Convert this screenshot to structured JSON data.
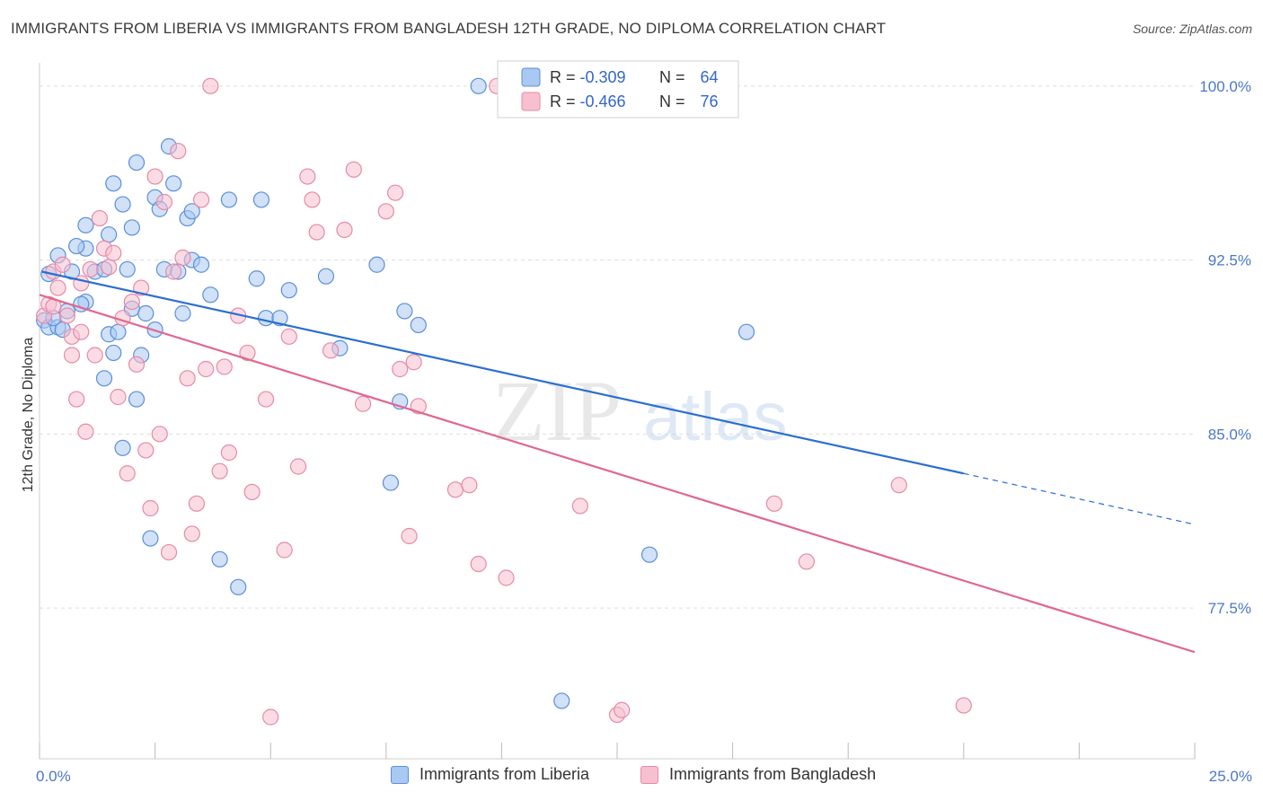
{
  "title": "IMMIGRANTS FROM LIBERIA VS IMMIGRANTS FROM BANGLADESH 12TH GRADE, NO DIPLOMA CORRELATION CHART",
  "source": "Source: ZipAtlas.com",
  "watermark": {
    "zip": "ZIP",
    "atlas": "atlas"
  },
  "colors": {
    "liberia_fill": "#a9c8f2",
    "liberia_stroke": "#5b8fd9",
    "liberia_line": "#2b6fd0",
    "bangladesh_fill": "#f7c0d0",
    "bangladesh_stroke": "#e58aa6",
    "bangladesh_line": "#e06890",
    "tick_text": "#4a78c8",
    "grid": "#dddddd"
  },
  "legend": {
    "rows": [
      {
        "r_label": "R = ",
        "r_value": "-0.309",
        "n_label": "N = ",
        "n_value": "64"
      },
      {
        "r_label": "R = ",
        "r_value": "-0.466",
        "n_label": "N = ",
        "n_value": "76"
      }
    ]
  },
  "bottom_legend": [
    "Immigrants from Liberia",
    "Immigrants from Bangladesh"
  ],
  "chart_data": {
    "type": "scatter",
    "title": "IMMIGRANTS FROM LIBERIA VS IMMIGRANTS FROM BANGLADESH 12TH GRADE, NO DIPLOMA CORRELATION CHART",
    "xlabel": "",
    "ylabel": "12th Grade, No Diploma",
    "xlim": [
      0,
      25
    ],
    "ylim": [
      71.0,
      101.0
    ],
    "x_tick_labels": [
      {
        "value": 0,
        "label": "0.0%"
      },
      {
        "value": 25,
        "label": "25.0%"
      }
    ],
    "y_ticks": [
      {
        "value": 100.0,
        "label": "100.0%"
      },
      {
        "value": 92.5,
        "label": "92.5%"
      },
      {
        "value": 85.0,
        "label": "85.0%"
      },
      {
        "value": 77.5,
        "label": "77.5%"
      }
    ],
    "grid": "horizontal dashed",
    "legend_position": "top-center",
    "series": [
      {
        "name": "Immigrants from Liberia",
        "r": -0.309,
        "n": 64,
        "trend": {
          "x0": 0.05,
          "y0": 92.0,
          "x1": 20.0,
          "y1": 83.3,
          "dash_to_x": 25.0,
          "dash_to_y": 81.1
        },
        "points": [
          [
            0.1,
            89.9
          ],
          [
            0.2,
            89.6
          ],
          [
            0.2,
            91.9
          ],
          [
            0.4,
            89.6
          ],
          [
            0.4,
            92.7
          ],
          [
            0.5,
            89.5
          ],
          [
            0.6,
            90.3
          ],
          [
            0.7,
            92.0
          ],
          [
            1.0,
            90.7
          ],
          [
            1.0,
            93.0
          ],
          [
            1.0,
            94.0
          ],
          [
            0.8,
            93.1
          ],
          [
            1.2,
            92.0
          ],
          [
            0.9,
            90.6
          ],
          [
            1.4,
            87.4
          ],
          [
            1.4,
            92.1
          ],
          [
            1.5,
            93.6
          ],
          [
            1.5,
            89.3
          ],
          [
            1.6,
            95.8
          ],
          [
            1.6,
            88.5
          ],
          [
            1.7,
            89.4
          ],
          [
            1.8,
            94.9
          ],
          [
            1.8,
            84.4
          ],
          [
            1.9,
            92.1
          ],
          [
            2.0,
            93.9
          ],
          [
            2.0,
            90.4
          ],
          [
            2.1,
            96.7
          ],
          [
            2.1,
            86.5
          ],
          [
            2.2,
            88.4
          ],
          [
            2.3,
            90.2
          ],
          [
            2.4,
            80.5
          ],
          [
            2.5,
            95.2
          ],
          [
            2.5,
            89.5
          ],
          [
            2.6,
            94.7
          ],
          [
            2.7,
            92.1
          ],
          [
            2.8,
            97.4
          ],
          [
            2.9,
            95.8
          ],
          [
            3.0,
            92.0
          ],
          [
            3.1,
            90.2
          ],
          [
            3.2,
            94.3
          ],
          [
            3.3,
            92.5
          ],
          [
            3.3,
            94.6
          ],
          [
            3.5,
            92.3
          ],
          [
            3.7,
            91.0
          ],
          [
            3.9,
            79.6
          ],
          [
            4.1,
            95.1
          ],
          [
            4.3,
            78.4
          ],
          [
            4.7,
            91.7
          ],
          [
            4.8,
            95.1
          ],
          [
            4.9,
            90.0
          ],
          [
            5.2,
            90.0
          ],
          [
            5.4,
            91.2
          ],
          [
            6.2,
            91.8
          ],
          [
            6.5,
            88.7
          ],
          [
            7.3,
            92.3
          ],
          [
            7.6,
            82.9
          ],
          [
            7.8,
            86.4
          ],
          [
            7.9,
            90.3
          ],
          [
            8.2,
            89.7
          ],
          [
            9.5,
            100.0
          ],
          [
            11.3,
            73.5
          ],
          [
            13.2,
            79.8
          ],
          [
            15.3,
            89.4
          ],
          [
            0.3,
            90.0
          ]
        ]
      },
      {
        "name": "Immigrants from Bangladesh",
        "r": -0.466,
        "n": 76,
        "trend": {
          "x0": 0.0,
          "y0": 91.0,
          "x1": 25.0,
          "y1": 75.6
        },
        "points": [
          [
            0.1,
            90.1
          ],
          [
            0.2,
            90.6
          ],
          [
            0.3,
            92.0
          ],
          [
            0.3,
            90.5
          ],
          [
            0.4,
            91.3
          ],
          [
            0.5,
            92.3
          ],
          [
            0.6,
            90.1
          ],
          [
            0.7,
            88.4
          ],
          [
            0.7,
            89.2
          ],
          [
            0.8,
            86.5
          ],
          [
            0.9,
            89.4
          ],
          [
            0.9,
            91.5
          ],
          [
            1.0,
            85.1
          ],
          [
            1.1,
            92.1
          ],
          [
            1.2,
            88.4
          ],
          [
            1.3,
            94.3
          ],
          [
            1.4,
            93.0
          ],
          [
            1.5,
            92.2
          ],
          [
            1.6,
            92.8
          ],
          [
            1.7,
            86.6
          ],
          [
            1.8,
            90.0
          ],
          [
            1.9,
            83.3
          ],
          [
            2.0,
            90.7
          ],
          [
            2.1,
            88.0
          ],
          [
            2.2,
            91.3
          ],
          [
            2.3,
            84.3
          ],
          [
            2.4,
            81.8
          ],
          [
            2.5,
            96.1
          ],
          [
            2.6,
            85.0
          ],
          [
            2.7,
            95.0
          ],
          [
            2.8,
            79.9
          ],
          [
            2.9,
            92.0
          ],
          [
            3.0,
            97.2
          ],
          [
            3.1,
            92.6
          ],
          [
            3.2,
            87.4
          ],
          [
            3.3,
            80.7
          ],
          [
            3.4,
            82.0
          ],
          [
            3.5,
            95.1
          ],
          [
            3.6,
            87.8
          ],
          [
            3.7,
            100.0
          ],
          [
            3.9,
            83.4
          ],
          [
            4.0,
            87.9
          ],
          [
            4.1,
            84.2
          ],
          [
            4.3,
            90.1
          ],
          [
            4.5,
            88.5
          ],
          [
            4.6,
            82.5
          ],
          [
            4.9,
            86.5
          ],
          [
            5.0,
            72.8
          ],
          [
            5.3,
            80.0
          ],
          [
            5.4,
            89.2
          ],
          [
            5.6,
            83.6
          ],
          [
            5.8,
            96.1
          ],
          [
            5.9,
            95.1
          ],
          [
            6.0,
            93.7
          ],
          [
            6.3,
            88.6
          ],
          [
            6.6,
            93.8
          ],
          [
            6.8,
            96.4
          ],
          [
            7.0,
            86.3
          ],
          [
            7.5,
            94.6
          ],
          [
            7.7,
            95.4
          ],
          [
            7.8,
            87.8
          ],
          [
            8.0,
            80.6
          ],
          [
            8.1,
            88.1
          ],
          [
            8.2,
            86.2
          ],
          [
            9.0,
            82.6
          ],
          [
            9.3,
            82.8
          ],
          [
            9.5,
            79.4
          ],
          [
            9.9,
            100.0
          ],
          [
            10.1,
            78.8
          ],
          [
            11.7,
            81.9
          ],
          [
            12.5,
            72.9
          ],
          [
            12.6,
            73.1
          ],
          [
            15.9,
            82.0
          ],
          [
            16.6,
            79.5
          ],
          [
            20.0,
            73.3
          ],
          [
            18.6,
            82.8
          ]
        ]
      }
    ]
  }
}
